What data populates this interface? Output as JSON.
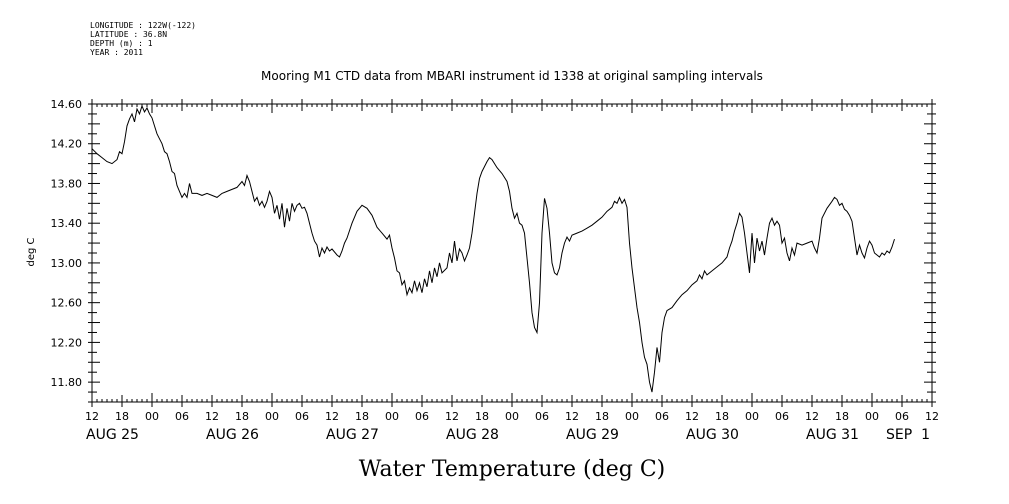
{
  "header": {
    "longitude": "LONGITUDE : 122W(-122)",
    "latitude": "LATITUDE : 36.8N",
    "depth": "DEPTH (m) : 1",
    "year": "YEAR : 2011"
  },
  "chart_data": {
    "type": "line",
    "title": "Mooring M1 CTD data from MBARI instrument id 1338 at original sampling intervals",
    "bottom_title": "Water Temperature (deg C)",
    "ylabel": "deg C",
    "ylim": [
      11.6,
      14.6
    ],
    "yticks": [
      "14.60",
      "14.20",
      "13.80",
      "13.40",
      "13.00",
      "12.60",
      "12.20",
      "11.80"
    ],
    "ytick_values": [
      14.6,
      14.2,
      13.8,
      13.4,
      13.0,
      12.6,
      12.2,
      11.8
    ],
    "xlim_hours": [
      0,
      168
    ],
    "x_hour_labels": [
      "12",
      "18",
      "00",
      "06",
      "12",
      "18",
      "00",
      "06",
      "12",
      "18",
      "00",
      "06",
      "12",
      "18",
      "00",
      "06",
      "12",
      "18",
      "00",
      "06",
      "12",
      "18",
      "00",
      "06",
      "12",
      "18",
      "00",
      "06",
      "12"
    ],
    "x_date_labels": [
      {
        "label": "AUG 25",
        "hour": 0
      },
      {
        "label": "AUG 26",
        "hour": 24
      },
      {
        "label": "AUG 27",
        "hour": 48
      },
      {
        "label": "AUG 28",
        "hour": 72
      },
      {
        "label": "AUG 29",
        "hour": 96
      },
      {
        "label": "AUG 30",
        "hour": 120
      },
      {
        "label": "AUG 31",
        "hour": 144
      },
      {
        "label": "SEP  1",
        "hour": 160
      }
    ],
    "grid": false,
    "series": [
      {
        "color": "#000000",
        "points": [
          [
            0,
            14.15
          ],
          [
            1,
            14.1
          ],
          [
            2,
            14.06
          ],
          [
            3,
            14.02
          ],
          [
            4,
            14.0
          ],
          [
            5,
            14.04
          ],
          [
            5.5,
            14.12
          ],
          [
            6,
            14.1
          ],
          [
            6.5,
            14.22
          ],
          [
            7,
            14.38
          ],
          [
            7.5,
            14.45
          ],
          [
            8,
            14.5
          ],
          [
            8.5,
            14.42
          ],
          [
            9,
            14.55
          ],
          [
            9.5,
            14.5
          ],
          [
            10,
            14.58
          ],
          [
            10.5,
            14.52
          ],
          [
            11,
            14.56
          ],
          [
            11.5,
            14.5
          ],
          [
            12,
            14.46
          ],
          [
            12.5,
            14.38
          ],
          [
            13,
            14.3
          ],
          [
            13.5,
            14.25
          ],
          [
            14,
            14.2
          ],
          [
            14.5,
            14.12
          ],
          [
            15,
            14.1
          ],
          [
            15.5,
            14.02
          ],
          [
            16,
            13.92
          ],
          [
            16.5,
            13.9
          ],
          [
            17,
            13.78
          ],
          [
            17.5,
            13.72
          ],
          [
            18,
            13.66
          ],
          [
            18.5,
            13.7
          ],
          [
            19,
            13.66
          ],
          [
            19.5,
            13.8
          ],
          [
            20,
            13.7
          ],
          [
            21,
            13.7
          ],
          [
            22,
            13.68
          ],
          [
            23,
            13.7
          ],
          [
            24,
            13.68
          ],
          [
            25,
            13.66
          ],
          [
            26,
            13.7
          ],
          [
            27,
            13.72
          ],
          [
            28,
            13.74
          ],
          [
            29,
            13.76
          ],
          [
            30,
            13.82
          ],
          [
            30.5,
            13.78
          ],
          [
            31,
            13.88
          ],
          [
            31.5,
            13.82
          ],
          [
            32,
            13.72
          ],
          [
            32.5,
            13.62
          ],
          [
            33,
            13.66
          ],
          [
            33.5,
            13.58
          ],
          [
            34,
            13.62
          ],
          [
            34.5,
            13.56
          ],
          [
            35,
            13.62
          ],
          [
            35.5,
            13.72
          ],
          [
            36,
            13.66
          ],
          [
            36.5,
            13.5
          ],
          [
            37,
            13.58
          ],
          [
            37.5,
            13.44
          ],
          [
            38,
            13.6
          ],
          [
            38.5,
            13.36
          ],
          [
            39,
            13.55
          ],
          [
            39.5,
            13.42
          ],
          [
            40,
            13.6
          ],
          [
            40.5,
            13.52
          ],
          [
            41,
            13.58
          ],
          [
            41.5,
            13.6
          ],
          [
            42,
            13.55
          ],
          [
            42.5,
            13.56
          ],
          [
            43,
            13.5
          ],
          [
            43.5,
            13.4
          ],
          [
            44,
            13.3
          ],
          [
            44.5,
            13.22
          ],
          [
            45,
            13.18
          ],
          [
            45.5,
            13.06
          ],
          [
            46,
            13.15
          ],
          [
            46.5,
            13.1
          ],
          [
            47,
            13.16
          ],
          [
            47.5,
            13.12
          ],
          [
            48,
            13.14
          ],
          [
            49,
            13.08
          ],
          [
            49.5,
            13.06
          ],
          [
            50,
            13.12
          ],
          [
            50.5,
            13.2
          ],
          [
            51,
            13.25
          ],
          [
            52,
            13.4
          ],
          [
            53,
            13.52
          ],
          [
            54,
            13.58
          ],
          [
            55,
            13.55
          ],
          [
            56,
            13.48
          ],
          [
            57,
            13.36
          ],
          [
            58,
            13.3
          ],
          [
            59,
            13.24
          ],
          [
            59.5,
            13.28
          ],
          [
            60,
            13.15
          ],
          [
            60.5,
            13.05
          ],
          [
            61,
            12.92
          ],
          [
            61.5,
            12.9
          ],
          [
            62,
            12.78
          ],
          [
            62.5,
            12.82
          ],
          [
            63,
            12.68
          ],
          [
            63.5,
            12.75
          ],
          [
            64,
            12.7
          ],
          [
            64.5,
            12.82
          ],
          [
            65,
            12.72
          ],
          [
            65.5,
            12.8
          ],
          [
            66,
            12.7
          ],
          [
            66.5,
            12.84
          ],
          [
            67,
            12.76
          ],
          [
            67.5,
            12.92
          ],
          [
            68,
            12.8
          ],
          [
            68.5,
            12.95
          ],
          [
            69,
            12.86
          ],
          [
            69.5,
            13.0
          ],
          [
            70,
            12.9
          ],
          [
            71,
            12.95
          ],
          [
            71.5,
            13.1
          ],
          [
            72,
            13.0
          ],
          [
            72.5,
            13.22
          ],
          [
            73,
            13.02
          ],
          [
            73.5,
            13.14
          ],
          [
            74,
            13.1
          ],
          [
            74.5,
            13.02
          ],
          [
            75,
            13.08
          ],
          [
            75.5,
            13.15
          ],
          [
            76,
            13.3
          ],
          [
            76.5,
            13.5
          ],
          [
            77,
            13.7
          ],
          [
            77.5,
            13.85
          ],
          [
            78,
            13.92
          ],
          [
            79,
            14.02
          ],
          [
            79.5,
            14.06
          ],
          [
            80,
            14.04
          ],
          [
            81,
            13.96
          ],
          [
            82,
            13.9
          ],
          [
            83,
            13.82
          ],
          [
            83.5,
            13.72
          ],
          [
            84,
            13.55
          ],
          [
            84.5,
            13.45
          ],
          [
            85,
            13.5
          ],
          [
            85.5,
            13.4
          ],
          [
            86,
            13.38
          ],
          [
            86.5,
            13.3
          ],
          [
            87,
            13.05
          ],
          [
            87.5,
            12.8
          ],
          [
            88,
            12.5
          ],
          [
            88.5,
            12.35
          ],
          [
            89,
            12.3
          ],
          [
            89.5,
            12.6
          ],
          [
            90,
            13.3
          ],
          [
            90.5,
            13.65
          ],
          [
            91,
            13.55
          ],
          [
            91.5,
            13.3
          ],
          [
            92,
            13.0
          ],
          [
            92.5,
            12.9
          ],
          [
            93,
            12.88
          ],
          [
            93.5,
            12.95
          ],
          [
            94,
            13.1
          ],
          [
            94.5,
            13.2
          ],
          [
            95,
            13.26
          ],
          [
            95.5,
            13.22
          ],
          [
            96,
            13.28
          ],
          [
            97,
            13.3
          ],
          [
            98,
            13.32
          ],
          [
            99,
            13.35
          ],
          [
            100,
            13.38
          ],
          [
            101,
            13.42
          ],
          [
            102,
            13.46
          ],
          [
            103,
            13.52
          ],
          [
            104,
            13.56
          ],
          [
            104.5,
            13.62
          ],
          [
            105,
            13.6
          ],
          [
            105.5,
            13.66
          ],
          [
            106,
            13.6
          ],
          [
            106.5,
            13.64
          ],
          [
            107,
            13.56
          ],
          [
            107.5,
            13.2
          ],
          [
            108,
            12.95
          ],
          [
            108.5,
            12.75
          ],
          [
            109,
            12.55
          ],
          [
            109.5,
            12.4
          ],
          [
            110,
            12.2
          ],
          [
            110.5,
            12.05
          ],
          [
            111,
            11.98
          ],
          [
            111.5,
            11.8
          ],
          [
            112,
            11.7
          ],
          [
            112.5,
            11.9
          ],
          [
            113,
            12.15
          ],
          [
            113.5,
            12.0
          ],
          [
            114,
            12.3
          ],
          [
            114.5,
            12.45
          ],
          [
            115,
            12.52
          ],
          [
            116,
            12.55
          ],
          [
            117,
            12.62
          ],
          [
            118,
            12.68
          ],
          [
            119,
            12.72
          ],
          [
            120,
            12.78
          ],
          [
            121,
            12.82
          ],
          [
            121.5,
            12.88
          ],
          [
            122,
            12.84
          ],
          [
            122.5,
            12.92
          ],
          [
            123,
            12.88
          ],
          [
            124,
            12.92
          ],
          [
            125,
            12.96
          ],
          [
            126,
            13.0
          ],
          [
            127,
            13.06
          ],
          [
            127.5,
            13.15
          ],
          [
            128,
            13.22
          ],
          [
            128.5,
            13.32
          ],
          [
            129,
            13.4
          ],
          [
            129.5,
            13.5
          ],
          [
            130,
            13.46
          ],
          [
            130.5,
            13.3
          ],
          [
            131,
            13.1
          ],
          [
            131.5,
            12.9
          ],
          [
            132,
            13.3
          ],
          [
            132.5,
            13.0
          ],
          [
            133,
            13.25
          ],
          [
            133.5,
            13.12
          ],
          [
            134,
            13.22
          ],
          [
            134.5,
            13.08
          ],
          [
            135,
            13.25
          ],
          [
            135.5,
            13.4
          ],
          [
            136,
            13.45
          ],
          [
            136.5,
            13.38
          ],
          [
            137,
            13.42
          ],
          [
            137.5,
            13.38
          ],
          [
            138,
            13.2
          ],
          [
            138.5,
            13.25
          ],
          [
            139,
            13.1
          ],
          [
            139.5,
            13.02
          ],
          [
            140,
            13.15
          ],
          [
            140.5,
            13.08
          ],
          [
            141,
            13.2
          ],
          [
            142,
            13.18
          ],
          [
            143,
            13.2
          ],
          [
            144,
            13.22
          ],
          [
            144.5,
            13.15
          ],
          [
            145,
            13.1
          ],
          [
            145.5,
            13.25
          ],
          [
            146,
            13.45
          ],
          [
            147,
            13.55
          ],
          [
            148,
            13.62
          ],
          [
            148.5,
            13.66
          ],
          [
            149,
            13.64
          ],
          [
            149.5,
            13.58
          ],
          [
            150,
            13.6
          ],
          [
            150.5,
            13.54
          ],
          [
            151,
            13.52
          ],
          [
            151.5,
            13.48
          ],
          [
            152,
            13.42
          ],
          [
            152.5,
            13.25
          ],
          [
            153,
            13.08
          ],
          [
            153.5,
            13.18
          ],
          [
            154,
            13.1
          ],
          [
            154.5,
            13.05
          ],
          [
            155,
            13.15
          ],
          [
            155.5,
            13.22
          ],
          [
            156,
            13.18
          ],
          [
            156.5,
            13.1
          ],
          [
            157,
            13.08
          ],
          [
            157.5,
            13.06
          ],
          [
            158,
            13.1
          ],
          [
            158.5,
            13.08
          ],
          [
            159,
            13.12
          ],
          [
            159.5,
            13.1
          ],
          [
            160,
            13.16
          ],
          [
            160.5,
            13.24
          ]
        ]
      }
    ]
  }
}
